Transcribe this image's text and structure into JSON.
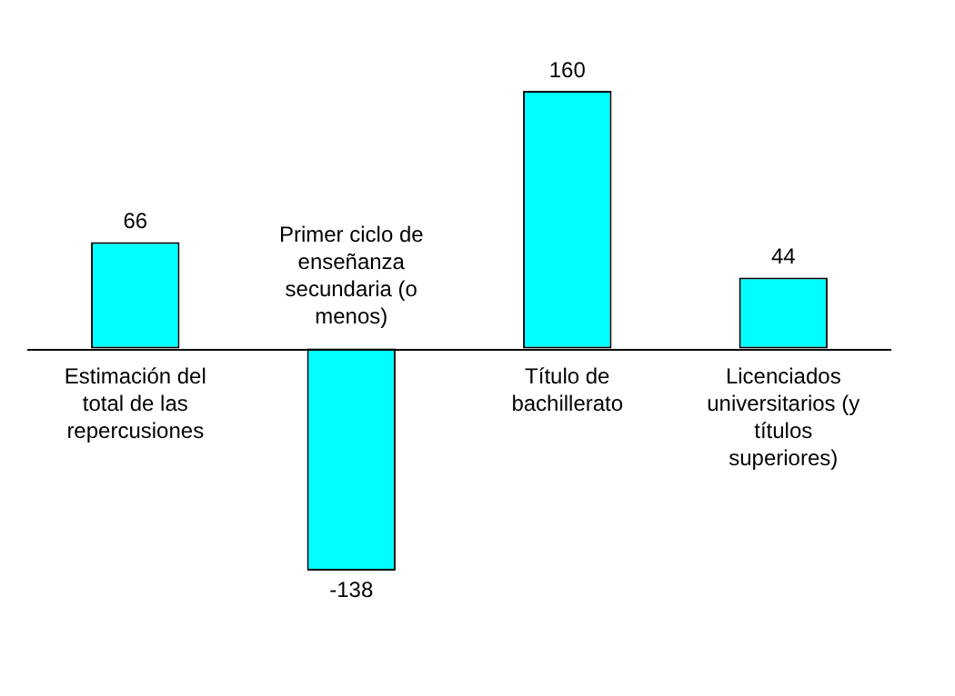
{
  "chart_data": {
    "type": "bar",
    "categories": [
      "Estimación del total de las repercusiones",
      "Primer ciclo de enseñanza secundaria (o menos)",
      "Título de bachillerato",
      "Licenciados universitarios (y títulos superiores)"
    ],
    "values": [
      66,
      -138,
      160,
      44
    ],
    "color": "#00ffff",
    "data_labels": true,
    "legend": false
  }
}
